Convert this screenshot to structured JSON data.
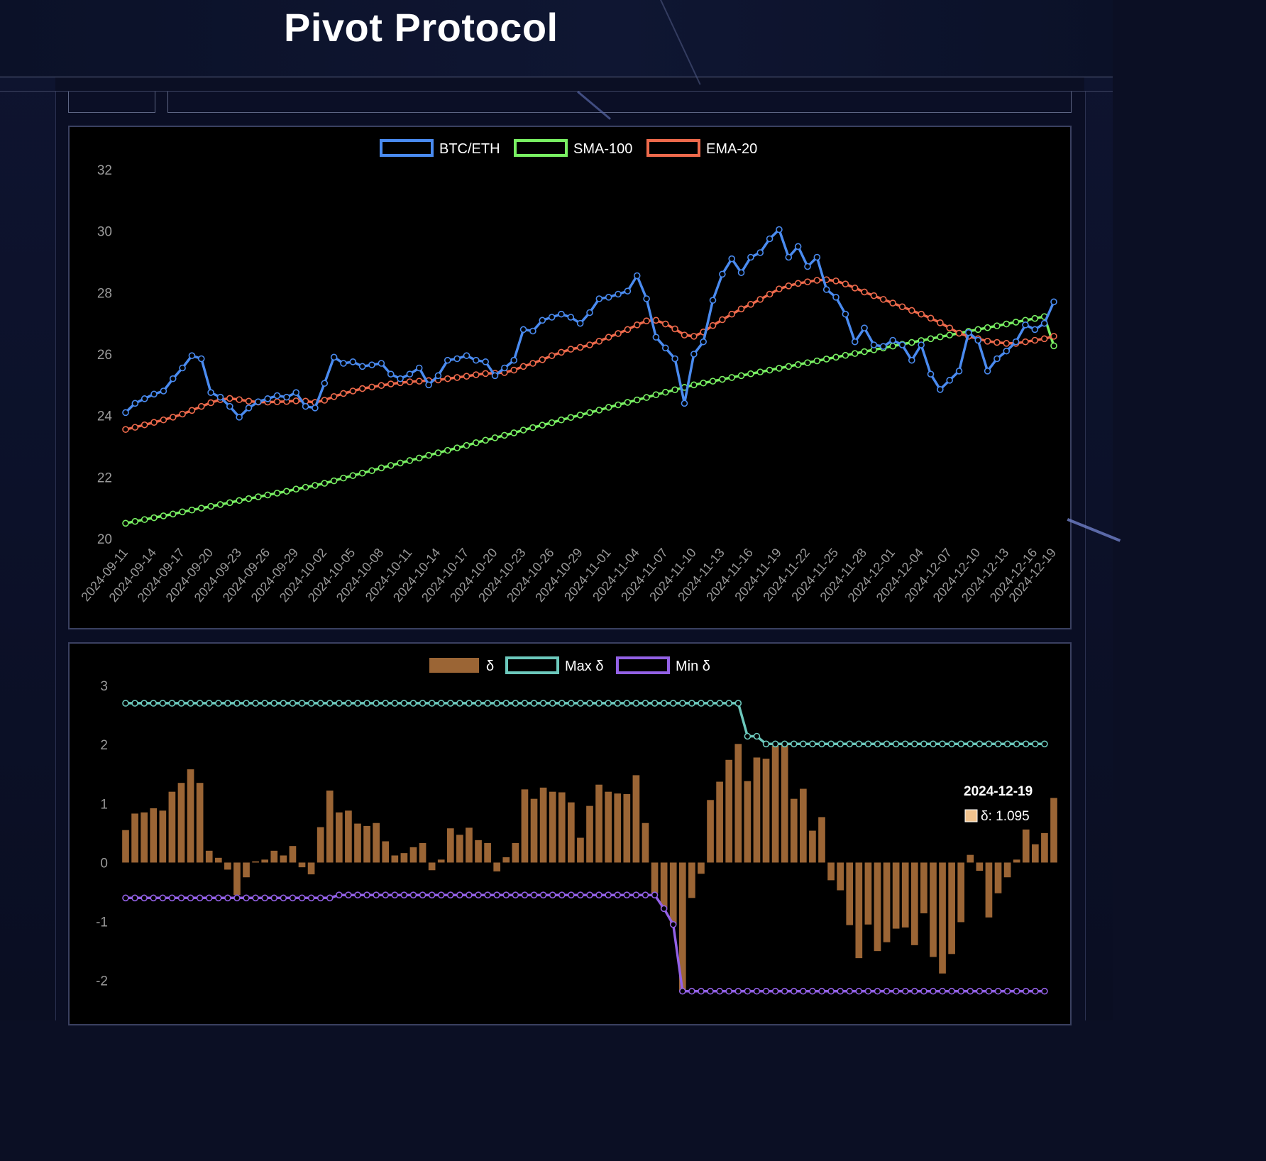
{
  "header": {
    "title": "Pivot Protocol"
  },
  "chart_data": [
    {
      "type": "line",
      "title": "",
      "xlabel": "",
      "ylabel": "",
      "ylim": [
        20,
        32
      ],
      "yticks": [
        20,
        22,
        24,
        26,
        28,
        30,
        32
      ],
      "x_start": "2024-09-11",
      "x_end": "2024-12-19",
      "x_tick_labels": [
        "2024-09-11",
        "2024-09-14",
        "2024-09-17",
        "2024-09-20",
        "2024-09-23",
        "2024-09-26",
        "2024-09-29",
        "2024-10-02",
        "2024-10-05",
        "2024-10-08",
        "2024-10-11",
        "2024-10-14",
        "2024-10-17",
        "2024-10-20",
        "2024-10-23",
        "2024-10-26",
        "2024-10-29",
        "2024-11-01",
        "2024-11-04",
        "2024-11-07",
        "2024-11-10",
        "2024-11-13",
        "2024-11-16",
        "2024-11-19",
        "2024-11-22",
        "2024-11-25",
        "2024-11-28",
        "2024-12-01",
        "2024-12-04",
        "2024-12-07",
        "2024-12-10",
        "2024-12-13",
        "2024-12-16",
        "2024-12-19"
      ],
      "grid": false,
      "legend_position": "top",
      "series": [
        {
          "name": "BTC/ETH",
          "color": "#4a8bf0",
          "values": [
            24.1,
            24.4,
            24.55,
            24.7,
            24.8,
            25.2,
            25.55,
            25.95,
            25.85,
            24.75,
            24.6,
            24.3,
            23.95,
            24.25,
            24.45,
            24.55,
            24.65,
            24.6,
            24.75,
            24.3,
            24.25,
            25.05,
            25.9,
            25.7,
            25.75,
            25.6,
            25.65,
            25.7,
            25.35,
            25.2,
            25.35,
            25.55,
            25.0,
            25.3,
            25.8,
            25.85,
            25.95,
            25.8,
            25.75,
            25.3,
            25.55,
            25.8,
            26.8,
            26.75,
            27.1,
            27.2,
            27.3,
            27.2,
            27.0,
            27.35,
            27.8,
            27.85,
            27.95,
            28.05,
            28.55,
            27.8,
            26.55,
            26.2,
            25.85,
            24.4,
            26.0,
            26.4,
            27.75,
            28.6,
            29.1,
            28.65,
            29.15,
            29.3,
            29.75,
            30.05,
            29.15,
            29.5,
            28.85,
            29.15,
            28.1,
            27.85,
            27.3,
            26.4,
            26.85,
            26.3,
            26.25,
            26.45,
            26.3,
            25.8,
            26.3,
            25.35,
            24.85,
            25.15,
            25.45,
            26.7,
            26.45,
            25.45,
            25.85,
            26.1,
            26.4,
            26.95,
            26.8,
            27.0,
            27.7
          ]
        },
        {
          "name": "SMA-100",
          "color": "#79f063",
          "values": [
            20.5,
            20.56,
            20.62,
            20.68,
            20.74,
            20.8,
            20.87,
            20.93,
            20.99,
            21.05,
            21.11,
            21.17,
            21.24,
            21.3,
            21.36,
            21.42,
            21.48,
            21.54,
            21.61,
            21.67,
            21.73,
            21.8,
            21.88,
            21.97,
            22.05,
            22.13,
            22.21,
            22.3,
            22.38,
            22.46,
            22.54,
            22.62,
            22.71,
            22.79,
            22.87,
            22.95,
            23.03,
            23.12,
            23.2,
            23.28,
            23.36,
            23.44,
            23.53,
            23.61,
            23.69,
            23.77,
            23.86,
            23.94,
            24.02,
            24.1,
            24.18,
            24.27,
            24.35,
            24.43,
            24.51,
            24.59,
            24.68,
            24.76,
            24.84,
            24.92,
            25.0,
            25.06,
            25.12,
            25.18,
            25.24,
            25.3,
            25.36,
            25.42,
            25.48,
            25.54,
            25.6,
            25.66,
            25.72,
            25.78,
            25.84,
            25.9,
            25.96,
            26.02,
            26.08,
            26.14,
            26.2,
            26.26,
            26.32,
            26.38,
            26.44,
            26.5,
            26.56,
            26.62,
            26.68,
            26.74,
            26.8,
            26.86,
            26.92,
            26.98,
            27.04,
            27.1,
            27.16,
            27.22,
            26.27
          ]
        },
        {
          "name": "EMA-20",
          "color": "#ee6a4c",
          "values": [
            23.55,
            23.62,
            23.7,
            23.78,
            23.86,
            23.95,
            24.05,
            24.17,
            24.3,
            24.42,
            24.52,
            24.56,
            24.52,
            24.47,
            24.44,
            24.44,
            24.45,
            24.46,
            24.48,
            24.47,
            24.43,
            24.5,
            24.62,
            24.72,
            24.8,
            24.88,
            24.93,
            24.98,
            25.03,
            25.07,
            25.1,
            25.12,
            25.14,
            25.16,
            25.2,
            25.24,
            25.28,
            25.33,
            25.37,
            25.38,
            25.4,
            25.48,
            25.6,
            25.7,
            25.82,
            25.95,
            26.06,
            26.16,
            26.22,
            26.3,
            26.42,
            26.55,
            26.67,
            26.8,
            26.95,
            27.08,
            27.1,
            26.98,
            26.82,
            26.62,
            26.58,
            26.72,
            26.93,
            27.12,
            27.3,
            27.47,
            27.62,
            27.78,
            27.95,
            28.12,
            28.22,
            28.3,
            28.35,
            28.4,
            28.42,
            28.38,
            28.28,
            28.15,
            28.02,
            27.9,
            27.78,
            27.66,
            27.54,
            27.42,
            27.3,
            27.17,
            27.02,
            26.85,
            26.68,
            26.58,
            26.5,
            26.42,
            26.38,
            26.35,
            26.35,
            26.4,
            26.45,
            26.5,
            26.58
          ]
        }
      ]
    },
    {
      "type": "bar",
      "title": "",
      "xlabel": "",
      "ylabel": "",
      "ylim": [
        -2.4,
        3
      ],
      "yticks": [
        -2,
        -1,
        0,
        1,
        2,
        3
      ],
      "grid": false,
      "legend_position": "top",
      "series": [
        {
          "name": "δ",
          "kind": "bar",
          "color": "#9b6535",
          "values": [
            0.55,
            0.83,
            0.85,
            0.92,
            0.88,
            1.2,
            1.35,
            1.58,
            1.35,
            0.2,
            0.08,
            -0.12,
            -0.55,
            -0.25,
            0.02,
            0.05,
            0.2,
            0.12,
            0.28,
            -0.08,
            -0.2,
            0.6,
            1.22,
            0.85,
            0.88,
            0.66,
            0.62,
            0.67,
            0.36,
            0.12,
            0.16,
            0.26,
            0.33,
            -0.13,
            0.05,
            0.58,
            0.47,
            0.59,
            0.38,
            0.33,
            -0.15,
            0.09,
            0.33,
            1.24,
            1.08,
            1.27,
            1.2,
            1.19,
            1.02,
            0.42,
            0.96,
            1.32,
            1.2,
            1.17,
            1.16,
            1.48,
            0.67,
            -0.52,
            -0.8,
            -1.05,
            -2.18,
            -0.6,
            -0.19,
            1.06,
            1.37,
            1.74,
            2.01,
            1.38,
            1.78,
            1.76,
            1.98,
            2.0,
            1.08,
            1.25,
            0.54,
            0.77,
            -0.3,
            -0.47,
            -1.06,
            -1.62,
            -1.05,
            -1.5,
            -1.35,
            -1.12,
            -1.1,
            -1.4,
            -0.86,
            -1.6,
            -1.88,
            -1.55,
            -1.01,
            0.13,
            -0.14,
            -0.93,
            -0.52,
            -0.25,
            0.05,
            0.56,
            0.31,
            0.5,
            1.095
          ]
        },
        {
          "name": "Max δ",
          "kind": "line",
          "color": "#6cc8bc",
          "values": [
            2.7,
            2.7,
            2.7,
            2.7,
            2.7,
            2.7,
            2.7,
            2.7,
            2.7,
            2.7,
            2.7,
            2.7,
            2.7,
            2.7,
            2.7,
            2.7,
            2.7,
            2.7,
            2.7,
            2.7,
            2.7,
            2.7,
            2.7,
            2.7,
            2.7,
            2.7,
            2.7,
            2.7,
            2.7,
            2.7,
            2.7,
            2.7,
            2.7,
            2.7,
            2.7,
            2.7,
            2.7,
            2.7,
            2.7,
            2.7,
            2.7,
            2.7,
            2.7,
            2.7,
            2.7,
            2.7,
            2.7,
            2.7,
            2.7,
            2.7,
            2.7,
            2.7,
            2.7,
            2.7,
            2.7,
            2.7,
            2.7,
            2.7,
            2.7,
            2.7,
            2.7,
            2.7,
            2.7,
            2.7,
            2.7,
            2.7,
            2.7,
            2.14,
            2.14,
            2.01,
            2.01,
            2.01,
            2.01,
            2.01,
            2.01,
            2.01,
            2.01,
            2.01,
            2.01,
            2.01,
            2.01,
            2.01,
            2.01,
            2.01,
            2.01,
            2.01,
            2.01,
            2.01,
            2.01,
            2.01,
            2.01,
            2.01,
            2.01,
            2.01,
            2.01,
            2.01,
            2.01,
            2.01,
            2.01,
            2.01
          ]
        },
        {
          "name": "Min δ",
          "kind": "line",
          "color": "#9361e6",
          "values": [
            -0.6,
            -0.6,
            -0.6,
            -0.6,
            -0.6,
            -0.6,
            -0.6,
            -0.6,
            -0.6,
            -0.6,
            -0.6,
            -0.6,
            -0.6,
            -0.6,
            -0.6,
            -0.6,
            -0.6,
            -0.6,
            -0.6,
            -0.6,
            -0.6,
            -0.6,
            -0.6,
            -0.55,
            -0.55,
            -0.55,
            -0.55,
            -0.55,
            -0.55,
            -0.55,
            -0.55,
            -0.55,
            -0.55,
            -0.55,
            -0.55,
            -0.55,
            -0.55,
            -0.55,
            -0.55,
            -0.55,
            -0.55,
            -0.55,
            -0.55,
            -0.55,
            -0.55,
            -0.55,
            -0.55,
            -0.55,
            -0.55,
            -0.55,
            -0.55,
            -0.55,
            -0.55,
            -0.55,
            -0.55,
            -0.55,
            -0.55,
            -0.55,
            -0.78,
            -1.05,
            -2.18,
            -2.18,
            -2.18,
            -2.18,
            -2.18,
            -2.18,
            -2.18,
            -2.18,
            -2.18,
            -2.18,
            -2.18,
            -2.18,
            -2.18,
            -2.18,
            -2.18,
            -2.18,
            -2.18,
            -2.18,
            -2.18,
            -2.18,
            -2.18,
            -2.18,
            -2.18,
            -2.18,
            -2.18,
            -2.18,
            -2.18,
            -2.18,
            -2.18,
            -2.18,
            -2.18,
            -2.18,
            -2.18,
            -2.18,
            -2.18,
            -2.18,
            -2.18,
            -2.18,
            -2.18,
            -2.18
          ]
        }
      ],
      "tooltip": {
        "date": "2024-12-19",
        "label": "δ: 1.095",
        "swatch_color": "#f1c38e"
      }
    }
  ]
}
